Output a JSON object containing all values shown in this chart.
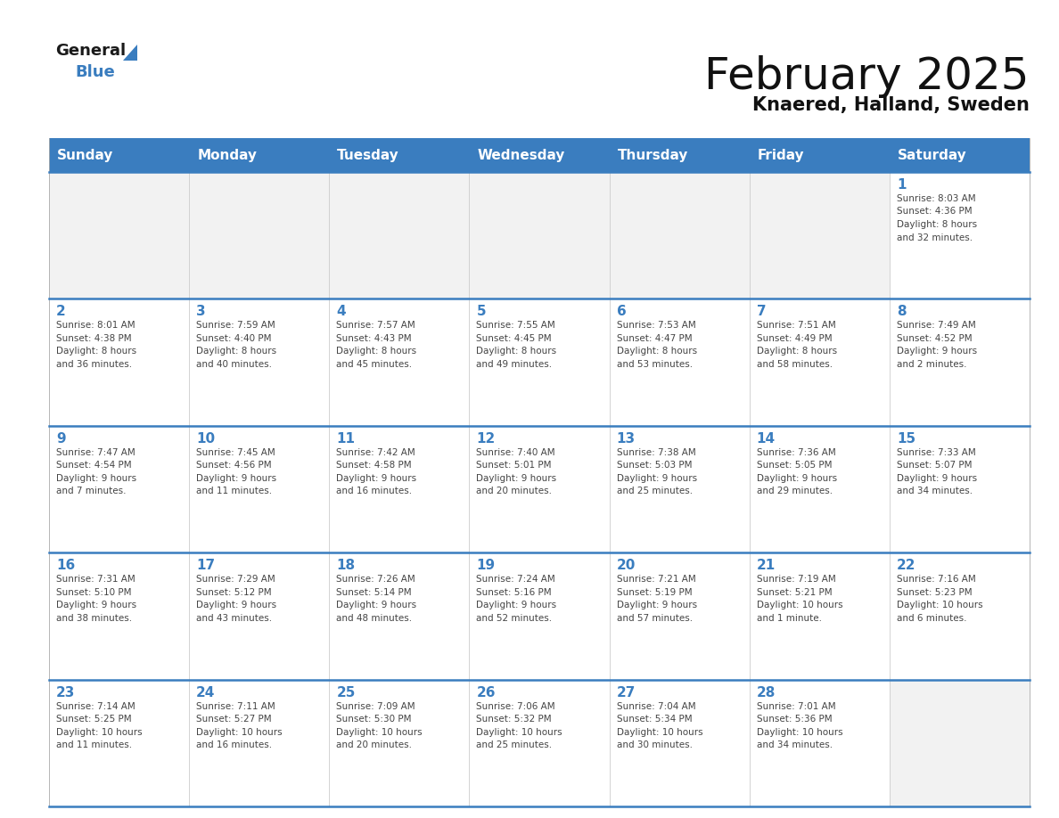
{
  "title": "February 2025",
  "subtitle": "Knaered, Halland, Sweden",
  "header_color": "#3a7dbf",
  "header_text_color": "#ffffff",
  "cell_bg_color": "#ffffff",
  "empty_cell_bg_color": "#f2f2f2",
  "day_headers": [
    "Sunday",
    "Monday",
    "Tuesday",
    "Wednesday",
    "Thursday",
    "Friday",
    "Saturday"
  ],
  "border_color": "#3a7dbf",
  "text_color": "#444444",
  "day_number_color": "#3a7dbf",
  "title_fontsize": 36,
  "subtitle_fontsize": 15,
  "header_fontsize": 11,
  "day_num_fontsize": 11,
  "cell_text_fontsize": 7.5,
  "calendar_data": [
    [
      null,
      null,
      null,
      null,
      null,
      null,
      {
        "day": 1,
        "sunrise": "8:03 AM",
        "sunset": "4:36 PM",
        "daylight1": "8 hours",
        "daylight2": "and 32 minutes."
      }
    ],
    [
      {
        "day": 2,
        "sunrise": "8:01 AM",
        "sunset": "4:38 PM",
        "daylight1": "8 hours",
        "daylight2": "and 36 minutes."
      },
      {
        "day": 3,
        "sunrise": "7:59 AM",
        "sunset": "4:40 PM",
        "daylight1": "8 hours",
        "daylight2": "and 40 minutes."
      },
      {
        "day": 4,
        "sunrise": "7:57 AM",
        "sunset": "4:43 PM",
        "daylight1": "8 hours",
        "daylight2": "and 45 minutes."
      },
      {
        "day": 5,
        "sunrise": "7:55 AM",
        "sunset": "4:45 PM",
        "daylight1": "8 hours",
        "daylight2": "and 49 minutes."
      },
      {
        "day": 6,
        "sunrise": "7:53 AM",
        "sunset": "4:47 PM",
        "daylight1": "8 hours",
        "daylight2": "and 53 minutes."
      },
      {
        "day": 7,
        "sunrise": "7:51 AM",
        "sunset": "4:49 PM",
        "daylight1": "8 hours",
        "daylight2": "and 58 minutes."
      },
      {
        "day": 8,
        "sunrise": "7:49 AM",
        "sunset": "4:52 PM",
        "daylight1": "9 hours",
        "daylight2": "and 2 minutes."
      }
    ],
    [
      {
        "day": 9,
        "sunrise": "7:47 AM",
        "sunset": "4:54 PM",
        "daylight1": "9 hours",
        "daylight2": "and 7 minutes."
      },
      {
        "day": 10,
        "sunrise": "7:45 AM",
        "sunset": "4:56 PM",
        "daylight1": "9 hours",
        "daylight2": "and 11 minutes."
      },
      {
        "day": 11,
        "sunrise": "7:42 AM",
        "sunset": "4:58 PM",
        "daylight1": "9 hours",
        "daylight2": "and 16 minutes."
      },
      {
        "day": 12,
        "sunrise": "7:40 AM",
        "sunset": "5:01 PM",
        "daylight1": "9 hours",
        "daylight2": "and 20 minutes."
      },
      {
        "day": 13,
        "sunrise": "7:38 AM",
        "sunset": "5:03 PM",
        "daylight1": "9 hours",
        "daylight2": "and 25 minutes."
      },
      {
        "day": 14,
        "sunrise": "7:36 AM",
        "sunset": "5:05 PM",
        "daylight1": "9 hours",
        "daylight2": "and 29 minutes."
      },
      {
        "day": 15,
        "sunrise": "7:33 AM",
        "sunset": "5:07 PM",
        "daylight1": "9 hours",
        "daylight2": "and 34 minutes."
      }
    ],
    [
      {
        "day": 16,
        "sunrise": "7:31 AM",
        "sunset": "5:10 PM",
        "daylight1": "9 hours",
        "daylight2": "and 38 minutes."
      },
      {
        "day": 17,
        "sunrise": "7:29 AM",
        "sunset": "5:12 PM",
        "daylight1": "9 hours",
        "daylight2": "and 43 minutes."
      },
      {
        "day": 18,
        "sunrise": "7:26 AM",
        "sunset": "5:14 PM",
        "daylight1": "9 hours",
        "daylight2": "and 48 minutes."
      },
      {
        "day": 19,
        "sunrise": "7:24 AM",
        "sunset": "5:16 PM",
        "daylight1": "9 hours",
        "daylight2": "and 52 minutes."
      },
      {
        "day": 20,
        "sunrise": "7:21 AM",
        "sunset": "5:19 PM",
        "daylight1": "9 hours",
        "daylight2": "and 57 minutes."
      },
      {
        "day": 21,
        "sunrise": "7:19 AM",
        "sunset": "5:21 PM",
        "daylight1": "10 hours",
        "daylight2": "and 1 minute."
      },
      {
        "day": 22,
        "sunrise": "7:16 AM",
        "sunset": "5:23 PM",
        "daylight1": "10 hours",
        "daylight2": "and 6 minutes."
      }
    ],
    [
      {
        "day": 23,
        "sunrise": "7:14 AM",
        "sunset": "5:25 PM",
        "daylight1": "10 hours",
        "daylight2": "and 11 minutes."
      },
      {
        "day": 24,
        "sunrise": "7:11 AM",
        "sunset": "5:27 PM",
        "daylight1": "10 hours",
        "daylight2": "and 16 minutes."
      },
      {
        "day": 25,
        "sunrise": "7:09 AM",
        "sunset": "5:30 PM",
        "daylight1": "10 hours",
        "daylight2": "and 20 minutes."
      },
      {
        "day": 26,
        "sunrise": "7:06 AM",
        "sunset": "5:32 PM",
        "daylight1": "10 hours",
        "daylight2": "and 25 minutes."
      },
      {
        "day": 27,
        "sunrise": "7:04 AM",
        "sunset": "5:34 PM",
        "daylight1": "10 hours",
        "daylight2": "and 30 minutes."
      },
      {
        "day": 28,
        "sunrise": "7:01 AM",
        "sunset": "5:36 PM",
        "daylight1": "10 hours",
        "daylight2": "and 34 minutes."
      },
      null
    ]
  ]
}
